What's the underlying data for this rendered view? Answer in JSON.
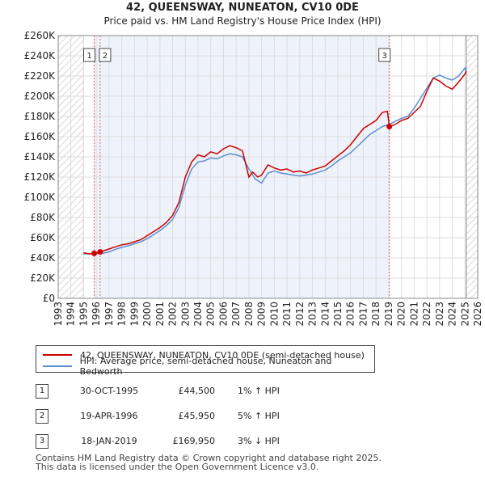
{
  "chart_data": {
    "type": "line",
    "title": "42, QUEENSWAY, NUNEATON, CV10 0DE",
    "subtitle": "Price paid vs. HM Land Registry's House Price Index (HPI)",
    "xlabel": "",
    "ylabel": "",
    "xlim": [
      1993,
      2026
    ],
    "ylim": [
      0,
      260000
    ],
    "x_ticks": [
      "1993",
      "1994",
      "1995",
      "1996",
      "1997",
      "1998",
      "1999",
      "2000",
      "2001",
      "2002",
      "2003",
      "2004",
      "2005",
      "2006",
      "2007",
      "2008",
      "2009",
      "2010",
      "2011",
      "2012",
      "2013",
      "2014",
      "2015",
      "2016",
      "2017",
      "2018",
      "2019",
      "2020",
      "2021",
      "2022",
      "2023",
      "2024",
      "2025",
      "2026"
    ],
    "y_ticks": [
      {
        "value": 0,
        "label": "£0"
      },
      {
        "value": 20000,
        "label": "£20K"
      },
      {
        "value": 40000,
        "label": "£40K"
      },
      {
        "value": 60000,
        "label": "£60K"
      },
      {
        "value": 80000,
        "label": "£80K"
      },
      {
        "value": 100000,
        "label": "£100K"
      },
      {
        "value": 120000,
        "label": "£120K"
      },
      {
        "value": 140000,
        "label": "£140K"
      },
      {
        "value": 160000,
        "label": "£160K"
      },
      {
        "value": 180000,
        "label": "£180K"
      },
      {
        "value": 200000,
        "label": "£200K"
      },
      {
        "value": 220000,
        "label": "£220K"
      },
      {
        "value": 240000,
        "label": "£240K"
      },
      {
        "value": 260000,
        "label": "£260K"
      }
    ],
    "hatched_ranges": [
      [
        1993,
        1995.0
      ],
      [
        2025.1,
        2026
      ]
    ],
    "shaded_range": [
      1995.8,
      2019.05
    ],
    "series": [
      {
        "name": "42, QUEENSWAY, NUNEATON, CV10 0DE (semi-detached house)",
        "color": "#cc0000",
        "x": [
          1995.0,
          1995.5,
          1995.83,
          1996.3,
          1996.8,
          1997.5,
          1998.0,
          1998.5,
          1999.0,
          1999.5,
          2000.0,
          2000.5,
          2001.0,
          2001.5,
          2002.0,
          2002.5,
          2003.0,
          2003.5,
          2004.0,
          2004.5,
          2005.0,
          2005.5,
          2006.0,
          2006.5,
          2007.0,
          2007.5,
          2008.0,
          2008.3,
          2008.7,
          2009.0,
          2009.5,
          2010.0,
          2010.5,
          2011.0,
          2011.5,
          2012.0,
          2012.5,
          2013.0,
          2013.5,
          2014.0,
          2014.5,
          2015.0,
          2015.5,
          2016.0,
          2016.5,
          2017.0,
          2017.5,
          2018.0,
          2018.5,
          2018.9,
          2019.05,
          2019.5,
          2020.0,
          2020.5,
          2021.0,
          2021.5,
          2022.0,
          2022.5,
          2023.0,
          2023.5,
          2024.0,
          2024.5,
          2025.0,
          2025.1
        ],
        "values": [
          45000,
          44000,
          44500,
          45950,
          48000,
          51000,
          53000,
          54000,
          56000,
          58000,
          62000,
          66000,
          70000,
          75000,
          82000,
          95000,
          120000,
          135000,
          142000,
          140000,
          145000,
          143000,
          148000,
          151000,
          149000,
          146000,
          120000,
          125000,
          120000,
          122000,
          132000,
          129000,
          127000,
          128000,
          125000,
          126000,
          124000,
          127000,
          129000,
          131000,
          136000,
          141000,
          146000,
          152000,
          160000,
          168000,
          172000,
          176000,
          184000,
          185000,
          169950,
          172000,
          176000,
          178000,
          184000,
          190000,
          205000,
          218000,
          215000,
          210000,
          207000,
          214000,
          222000,
          225000
        ]
      },
      {
        "name": "HPI: Average price, semi-detached house, Nuneaton and Bedworth",
        "color": "#5b8fd0",
        "x": [
          1995.0,
          1995.5,
          1996.0,
          1996.5,
          1997.0,
          1997.5,
          1998.0,
          1998.5,
          1999.0,
          1999.5,
          2000.0,
          2000.5,
          2001.0,
          2001.5,
          2002.0,
          2002.5,
          2003.0,
          2003.5,
          2004.0,
          2004.5,
          2005.0,
          2005.5,
          2006.0,
          2006.5,
          2007.0,
          2007.5,
          2008.0,
          2008.5,
          2009.0,
          2009.5,
          2010.0,
          2010.5,
          2011.0,
          2011.5,
          2012.0,
          2012.5,
          2013.0,
          2013.5,
          2014.0,
          2014.5,
          2015.0,
          2015.5,
          2016.0,
          2016.5,
          2017.0,
          2017.5,
          2018.0,
          2018.5,
          2019.0,
          2019.5,
          2020.0,
          2020.5,
          2021.0,
          2021.5,
          2022.0,
          2022.5,
          2023.0,
          2023.5,
          2024.0,
          2024.5,
          2025.0,
          2025.1
        ],
        "values": [
          44000,
          44000,
          44000,
          44500,
          46000,
          48500,
          50500,
          52000,
          54000,
          56000,
          59000,
          63000,
          67000,
          72000,
          78000,
          90000,
          112000,
          128000,
          135000,
          136000,
          139000,
          138000,
          141000,
          143000,
          142000,
          140000,
          128000,
          118000,
          114000,
          124000,
          126000,
          124000,
          123000,
          122000,
          121000,
          122000,
          123000,
          125000,
          127000,
          131000,
          136000,
          140000,
          144000,
          150000,
          156000,
          162000,
          166000,
          170000,
          172000,
          175000,
          178000,
          180000,
          188000,
          198000,
          208000,
          218000,
          221000,
          218000,
          216000,
          220000,
          228000,
          224000
        ]
      }
    ],
    "markers": [
      {
        "id": "1",
        "x": 1995.83,
        "value": 44500
      },
      {
        "id": "2",
        "x": 1996.3,
        "value": 45950
      },
      {
        "id": "3",
        "x": 2019.05,
        "value": 169950
      }
    ]
  },
  "legend": {
    "red_label": "42, QUEENSWAY, NUNEATON, CV10 0DE (semi-detached house)",
    "blue_label": "HPI: Average price, semi-detached house, Nuneaton and Bedworth"
  },
  "transactions": [
    {
      "id": "1",
      "date": "30-OCT-1995",
      "price": "£44,500",
      "hpi": "1% ↑ HPI"
    },
    {
      "id": "2",
      "date": "19-APR-1996",
      "price": "£45,950",
      "hpi": "5% ↑ HPI"
    },
    {
      "id": "3",
      "date": "18-JAN-2019",
      "price": "£169,950",
      "hpi": "3% ↓ HPI"
    }
  ],
  "footer": {
    "line1": "Contains HM Land Registry data © Crown copyright and database right 2025.",
    "line2": "This data is licensed under the Open Government Licence v3.0."
  }
}
